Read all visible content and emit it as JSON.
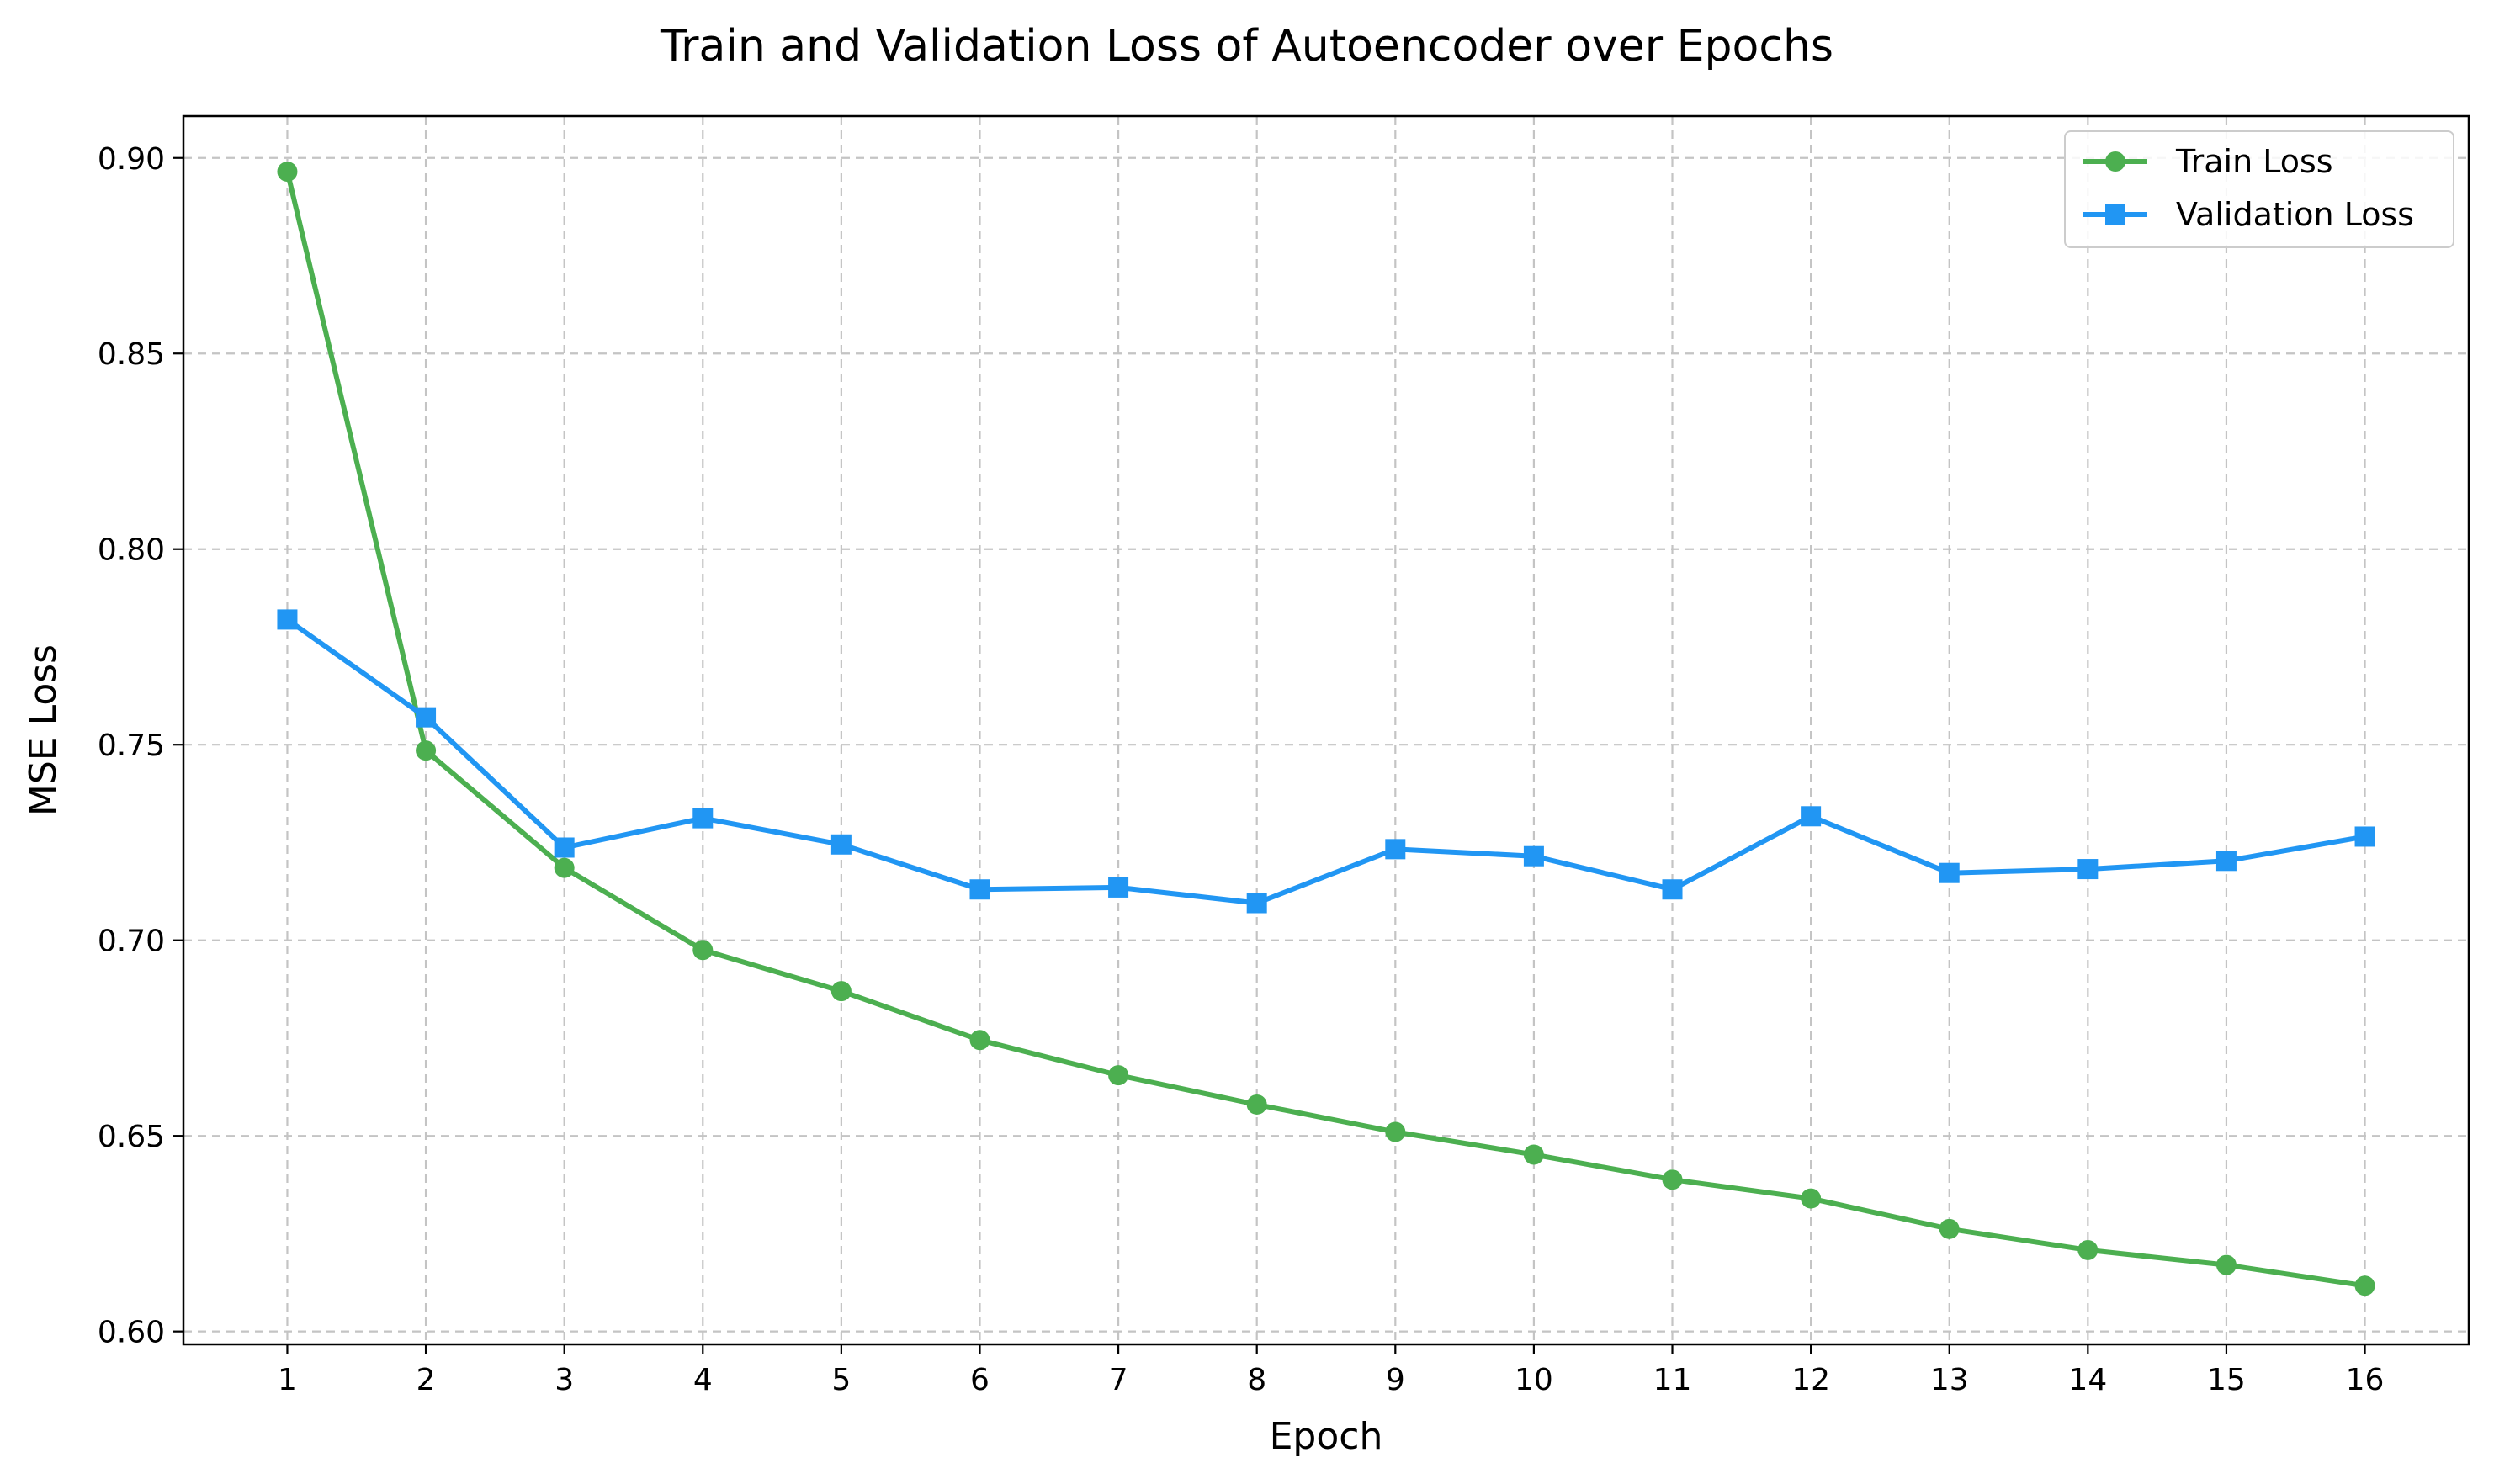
{
  "chart_data": {
    "type": "line",
    "title": "Train and Validation Loss of Autoencoder over Epochs",
    "xlabel": "Epoch",
    "ylabel": "MSE Loss",
    "x": [
      1,
      2,
      3,
      4,
      5,
      6,
      7,
      8,
      9,
      10,
      11,
      12,
      13,
      14,
      15,
      16
    ],
    "xlim": [
      0.25,
      16.75
    ],
    "ylim": [
      0.5967,
      0.9107
    ],
    "yticks": [
      0.6,
      0.65,
      0.7,
      0.75,
      0.8,
      0.85,
      0.9
    ],
    "ytick_labels": [
      "0.60",
      "0.65",
      "0.70",
      "0.75",
      "0.80",
      "0.85",
      "0.90"
    ],
    "xtick_labels": [
      "1",
      "2",
      "3",
      "4",
      "5",
      "6",
      "7",
      "8",
      "9",
      "10",
      "11",
      "12",
      "13",
      "14",
      "15",
      "16"
    ],
    "grid": true,
    "legend_position": "top-right",
    "series": [
      {
        "name": "Train Loss",
        "color": "#4caf50",
        "marker": "circle",
        "values": [
          0.8965,
          0.7485,
          0.7185,
          0.6975,
          0.687,
          0.6745,
          0.6655,
          0.658,
          0.651,
          0.6452,
          0.6388,
          0.634,
          0.6262,
          0.6208,
          0.617,
          0.6117
        ]
      },
      {
        "name": "Validation Loss",
        "color": "#2196f3",
        "marker": "square",
        "values": [
          0.782,
          0.757,
          0.7237,
          0.7312,
          0.7245,
          0.713,
          0.7135,
          0.7095,
          0.7233,
          0.7215,
          0.713,
          0.7317,
          0.7172,
          0.7182,
          0.7203,
          0.7265
        ]
      }
    ]
  }
}
